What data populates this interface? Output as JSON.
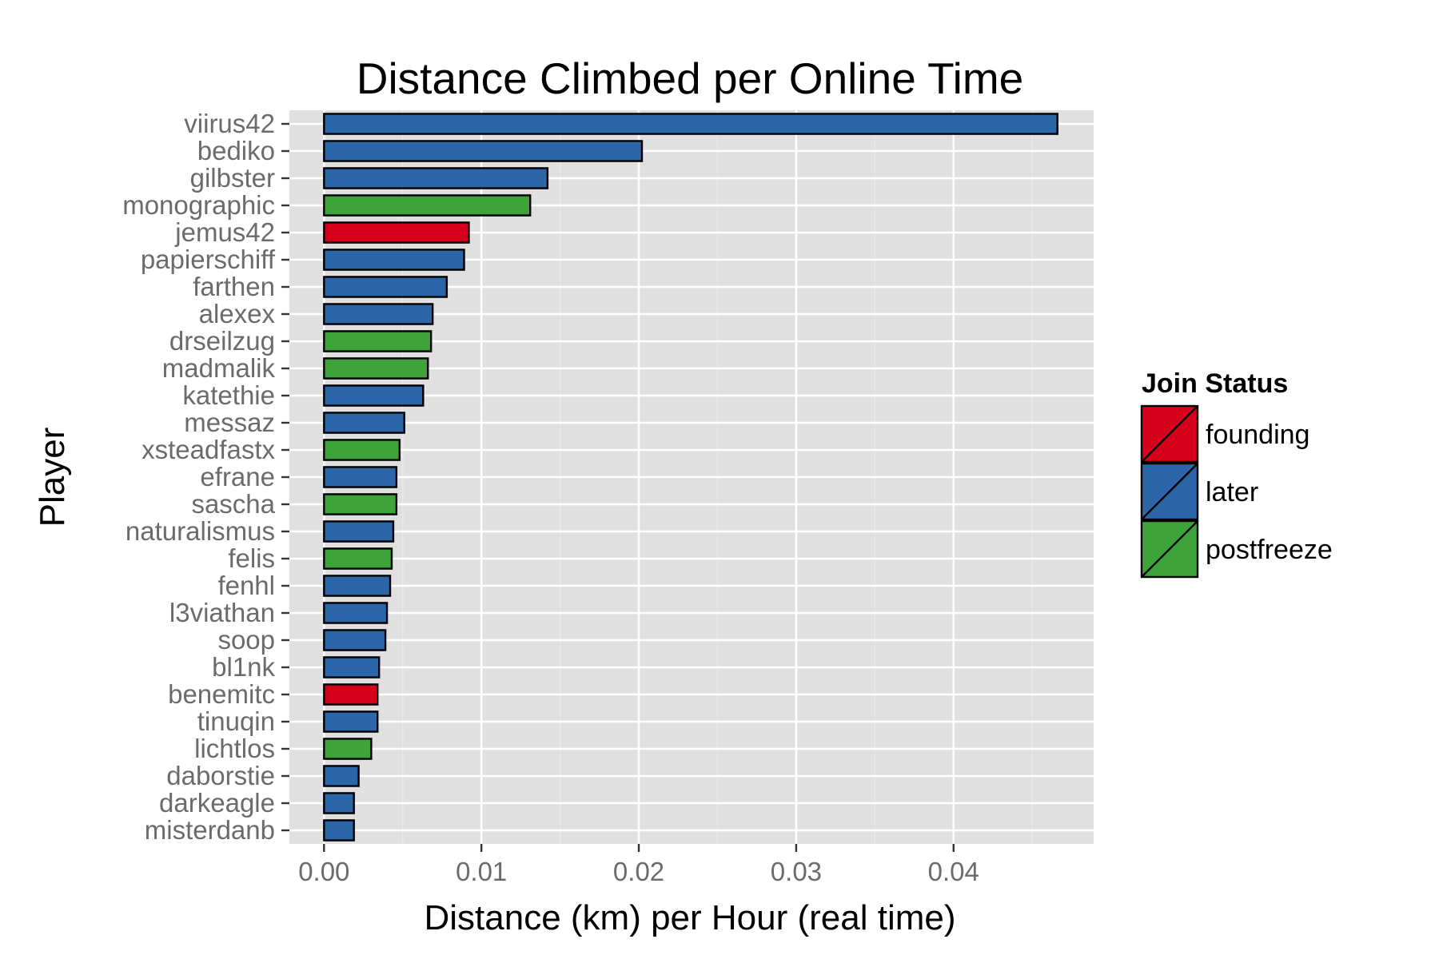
{
  "chart_data": {
    "type": "bar",
    "orientation": "horizontal",
    "title": "Distance Climbed per Online Time",
    "xlabel": "Distance (km) per Hour (real time)",
    "ylabel": "Player",
    "xlim": [
      -0.0022,
      0.0489
    ],
    "xticks": [
      0.0,
      0.01,
      0.02,
      0.03,
      0.04
    ],
    "xtick_labels": [
      "0.00",
      "0.01",
      "0.02",
      "0.03",
      "0.04"
    ],
    "grid": true,
    "legend": {
      "title": "Join Status",
      "placement": "right",
      "entries": [
        {
          "label": "founding",
          "color": "#D7001C"
        },
        {
          "label": "later",
          "color": "#2C65A8"
        },
        {
          "label": "postfreeze",
          "color": "#3EA33A"
        }
      ]
    },
    "bars": [
      {
        "player": "viirus42",
        "value": 0.0466,
        "status": "later"
      },
      {
        "player": "bediko",
        "value": 0.0202,
        "status": "later"
      },
      {
        "player": "gilbster",
        "value": 0.0142,
        "status": "later"
      },
      {
        "player": "monographic",
        "value": 0.0131,
        "status": "postfreeze"
      },
      {
        "player": "jemus42",
        "value": 0.0092,
        "status": "founding"
      },
      {
        "player": "papierschiff",
        "value": 0.0089,
        "status": "later"
      },
      {
        "player": "farthen",
        "value": 0.0078,
        "status": "later"
      },
      {
        "player": "alexex",
        "value": 0.0069,
        "status": "later"
      },
      {
        "player": "drseilzug",
        "value": 0.0068,
        "status": "postfreeze"
      },
      {
        "player": "madmalik",
        "value": 0.0066,
        "status": "postfreeze"
      },
      {
        "player": "katethie",
        "value": 0.0063,
        "status": "later"
      },
      {
        "player": "messaz",
        "value": 0.0051,
        "status": "later"
      },
      {
        "player": "xsteadfastx",
        "value": 0.0048,
        "status": "postfreeze"
      },
      {
        "player": "efrane",
        "value": 0.0046,
        "status": "later"
      },
      {
        "player": "sascha",
        "value": 0.0046,
        "status": "postfreeze"
      },
      {
        "player": "naturalismus",
        "value": 0.0044,
        "status": "later"
      },
      {
        "player": "felis",
        "value": 0.0043,
        "status": "postfreeze"
      },
      {
        "player": "fenhl",
        "value": 0.0042,
        "status": "later"
      },
      {
        "player": "l3viathan",
        "value": 0.004,
        "status": "later"
      },
      {
        "player": "soop",
        "value": 0.0039,
        "status": "later"
      },
      {
        "player": "bl1nk",
        "value": 0.0035,
        "status": "later"
      },
      {
        "player": "benemitc",
        "value": 0.0034,
        "status": "founding"
      },
      {
        "player": "tinuqin",
        "value": 0.0034,
        "status": "later"
      },
      {
        "player": "lichtlos",
        "value": 0.003,
        "status": "postfreeze"
      },
      {
        "player": "daborstie",
        "value": 0.0022,
        "status": "later"
      },
      {
        "player": "darkeagle",
        "value": 0.0019,
        "status": "later"
      },
      {
        "player": "misterdanb",
        "value": 0.0019,
        "status": "later"
      }
    ]
  },
  "colors": {
    "panel_background": "#E0E0E0",
    "grid_major": "#FFFFFF",
    "grid_minor": "#EBEBEB",
    "bar_outline": "#000000",
    "tick_text": "#6B6B6B"
  }
}
